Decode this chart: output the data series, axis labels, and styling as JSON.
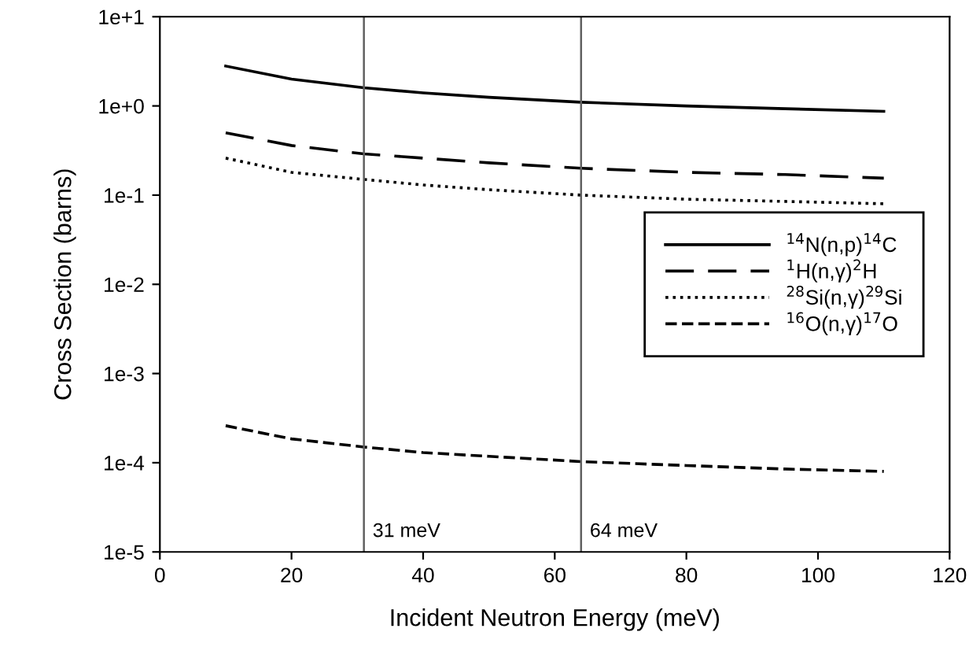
{
  "chart_data": {
    "type": "line",
    "xlabel": "Incident Neutron Energy (meV)",
    "ylabel": "Cross Section (barns)",
    "x": [
      10,
      20,
      31,
      40,
      50,
      64,
      80,
      95,
      110
    ],
    "series": [
      {
        "name": "$^{14}$N(n,p)$^{14}$C",
        "color": "#000000",
        "line_style": "solid",
        "values": [
          2.8,
          2.0,
          1.6,
          1.4,
          1.25,
          1.1,
          1.0,
          0.93,
          0.87
        ]
      },
      {
        "name": "$^{1}$H(n,γ)$^{2}$H",
        "color": "#000000",
        "line_style": "long dashed",
        "values": [
          0.5,
          0.36,
          0.29,
          0.26,
          0.23,
          0.2,
          0.18,
          0.17,
          0.155
        ]
      },
      {
        "name": "$^{28}$Si(n,γ)$^{29}$Si",
        "color": "#000000",
        "line_style": "dotted",
        "values": [
          0.26,
          0.18,
          0.15,
          0.13,
          0.115,
          0.1,
          0.09,
          0.085,
          0.08
        ]
      },
      {
        "name": "$^{16}$O(n,γ)$^{17}$O",
        "color": "#000000",
        "line_style": "dashed",
        "values": [
          0.00026,
          0.000185,
          0.00015,
          0.00013,
          0.000118,
          0.000103,
          9.3e-05,
          8.5e-05,
          8e-05
        ]
      }
    ],
    "log": true,
    "xlim": [
      0,
      120
    ],
    "xticks": [
      0,
      20,
      40,
      60,
      80,
      100,
      120
    ],
    "ylim": [
      1e-05,
      10
    ],
    "yticks": [
      {
        "value": 1e-05,
        "label": "1e-5"
      },
      {
        "value": 0.0001,
        "label": "1e-4"
      },
      {
        "value": 0.001,
        "label": "1e-3"
      },
      {
        "value": 0.01,
        "label": "1e-2"
      },
      {
        "value": 0.1,
        "label": "1e-1"
      },
      {
        "value": 1,
        "label": "1e+0"
      },
      {
        "value": 10,
        "label": "1e+1"
      }
    ],
    "ref_lines": [
      {
        "axis": "x",
        "value": 31,
        "label": "31 meV",
        "color": "#606060"
      },
      {
        "axis": "x",
        "value": 64,
        "label": "64 meV",
        "color": "#606060"
      }
    ],
    "legend": "center right",
    "grid": false,
    "marker": "none"
  }
}
